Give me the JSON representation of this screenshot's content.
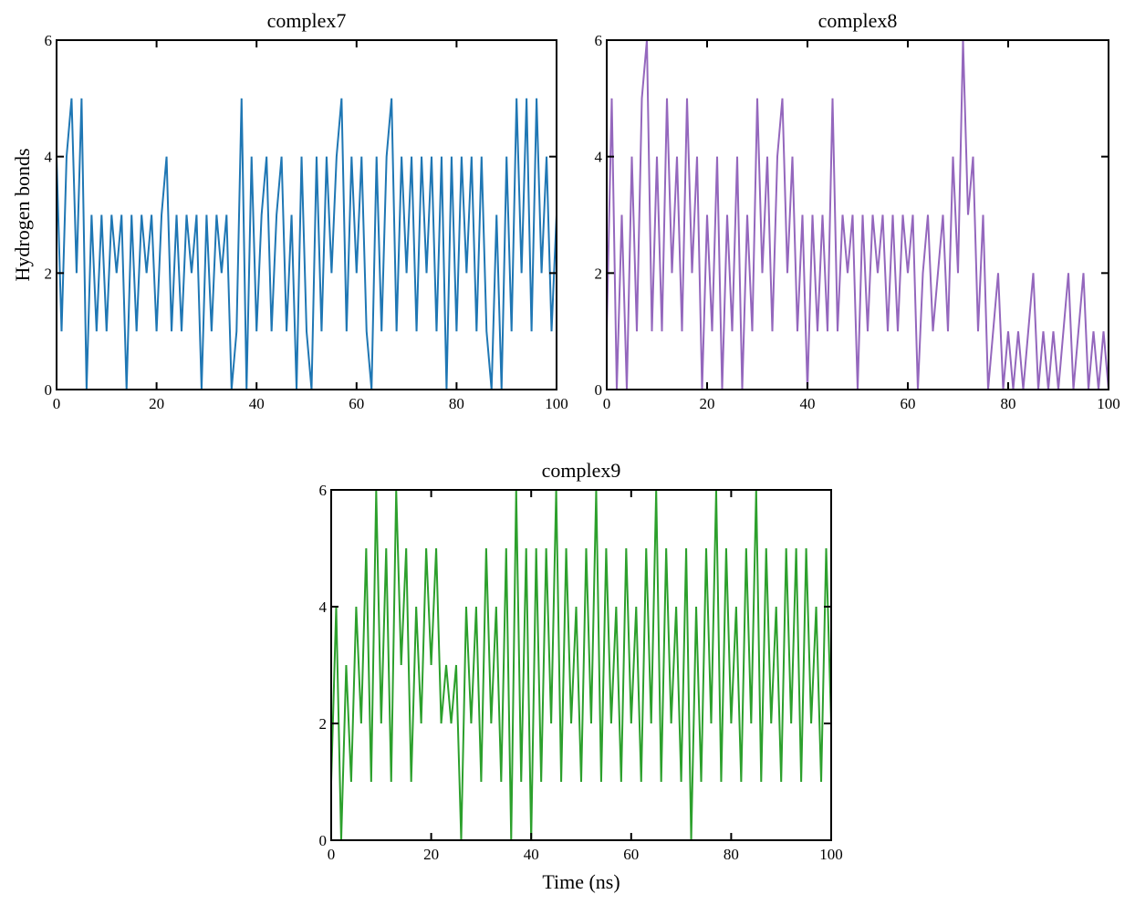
{
  "chart_data": [
    {
      "type": "line",
      "title": "complex7",
      "ylabel": "Hydrogen bonds",
      "color": "#1f77b4",
      "x": [
        0,
        1,
        2,
        3,
        4,
        5,
        6,
        7,
        8,
        9,
        10,
        11,
        12,
        13,
        14,
        15,
        16,
        17,
        18,
        19,
        20,
        21,
        22,
        23,
        24,
        25,
        26,
        27,
        28,
        29,
        30,
        31,
        32,
        33,
        34,
        35,
        36,
        37,
        38,
        39,
        40,
        41,
        42,
        43,
        44,
        45,
        46,
        47,
        48,
        49,
        50,
        51,
        52,
        53,
        54,
        55,
        56,
        57,
        58,
        59,
        60,
        61,
        62,
        63,
        64,
        65,
        66,
        67,
        68,
        69,
        70,
        71,
        72,
        73,
        74,
        75,
        76,
        77,
        78,
        79,
        80,
        81,
        82,
        83,
        84,
        85,
        86,
        87,
        88,
        89,
        90,
        91,
        92,
        93,
        94,
        95,
        96,
        97,
        98,
        99,
        100
      ],
      "values": [
        4,
        1,
        4,
        5,
        2,
        5,
        0,
        3,
        1,
        3,
        1,
        3,
        2,
        3,
        0,
        3,
        1,
        3,
        2,
        3,
        1,
        3,
        4,
        1,
        3,
        1,
        3,
        2,
        3,
        0,
        3,
        1,
        3,
        2,
        3,
        0,
        1,
        5,
        0,
        4,
        1,
        3,
        4,
        1,
        3,
        4,
        1,
        3,
        0,
        4,
        1,
        0,
        4,
        1,
        4,
        2,
        4,
        5,
        1,
        4,
        2,
        4,
        1,
        0,
        4,
        1,
        4,
        5,
        1,
        4,
        2,
        4,
        1,
        4,
        2,
        4,
        1,
        4,
        0,
        4,
        1,
        4,
        2,
        4,
        1,
        4,
        1,
        0,
        3,
        0,
        4,
        1,
        5,
        2,
        5,
        1,
        5,
        2,
        4,
        1,
        3
      ],
      "xlim": [
        0,
        100
      ],
      "ylim": [
        0,
        6
      ],
      "xticks": [
        0,
        20,
        40,
        60,
        80,
        100
      ],
      "yticks": [
        0,
        2,
        4,
        6
      ]
    },
    {
      "type": "line",
      "title": "complex8",
      "color": "#9467bd",
      "x": [
        0,
        1,
        2,
        3,
        4,
        5,
        6,
        7,
        8,
        9,
        10,
        11,
        12,
        13,
        14,
        15,
        16,
        17,
        18,
        19,
        20,
        21,
        22,
        23,
        24,
        25,
        26,
        27,
        28,
        29,
        30,
        31,
        32,
        33,
        34,
        35,
        36,
        37,
        38,
        39,
        40,
        41,
        42,
        43,
        44,
        45,
        46,
        47,
        48,
        49,
        50,
        51,
        52,
        53,
        54,
        55,
        56,
        57,
        58,
        59,
        60,
        61,
        62,
        63,
        64,
        65,
        66,
        67,
        68,
        69,
        70,
        71,
        72,
        73,
        74,
        75,
        76,
        77,
        78,
        79,
        80,
        81,
        82,
        83,
        84,
        85,
        86,
        87,
        88,
        89,
        90,
        91,
        92,
        93,
        94,
        95,
        96,
        97,
        98,
        99,
        100
      ],
      "values": [
        1,
        5,
        0,
        3,
        0,
        4,
        1,
        5,
        6,
        1,
        4,
        1,
        5,
        2,
        4,
        1,
        5,
        2,
        4,
        0,
        3,
        1,
        4,
        0,
        3,
        1,
        4,
        0,
        3,
        1,
        5,
        2,
        4,
        1,
        4,
        5,
        2,
        4,
        1,
        3,
        0,
        3,
        1,
        3,
        1,
        5,
        1,
        3,
        2,
        3,
        0,
        3,
        1,
        3,
        2,
        3,
        1,
        3,
        1,
        3,
        2,
        3,
        0,
        2,
        3,
        1,
        2,
        3,
        1,
        4,
        2,
        6,
        3,
        4,
        1,
        3,
        0,
        1,
        2,
        0,
        1,
        0,
        1,
        0,
        1,
        2,
        0,
        1,
        0,
        1,
        0,
        1,
        2,
        0,
        1,
        2,
        0,
        1,
        0,
        1,
        0
      ],
      "xlim": [
        0,
        100
      ],
      "ylim": [
        0,
        6
      ],
      "xticks": [
        0,
        20,
        40,
        60,
        80,
        100
      ],
      "yticks": [
        0,
        2,
        4,
        6
      ]
    },
    {
      "type": "line",
      "title": "complex9",
      "xlabel": "Time (ns)",
      "color": "#2ca02c",
      "x": [
        0,
        1,
        2,
        3,
        4,
        5,
        6,
        7,
        8,
        9,
        10,
        11,
        12,
        13,
        14,
        15,
        16,
        17,
        18,
        19,
        20,
        21,
        22,
        23,
        24,
        25,
        26,
        27,
        28,
        29,
        30,
        31,
        32,
        33,
        34,
        35,
        36,
        37,
        38,
        39,
        40,
        41,
        42,
        43,
        44,
        45,
        46,
        47,
        48,
        49,
        50,
        51,
        52,
        53,
        54,
        55,
        56,
        57,
        58,
        59,
        60,
        61,
        62,
        63,
        64,
        65,
        66,
        67,
        68,
        69,
        70,
        71,
        72,
        73,
        74,
        75,
        76,
        77,
        78,
        79,
        80,
        81,
        82,
        83,
        84,
        85,
        86,
        87,
        88,
        89,
        90,
        91,
        92,
        93,
        94,
        95,
        96,
        97,
        98,
        99,
        100
      ],
      "values": [
        1,
        4,
        0,
        3,
        1,
        4,
        2,
        5,
        1,
        6,
        2,
        5,
        1,
        6,
        3,
        5,
        1,
        4,
        2,
        5,
        3,
        5,
        2,
        3,
        2,
        3,
        0,
        4,
        2,
        4,
        1,
        5,
        2,
        4,
        1,
        5,
        0,
        6,
        1,
        5,
        0,
        5,
        1,
        5,
        2,
        6,
        1,
        5,
        2,
        4,
        1,
        5,
        2,
        6,
        1,
        5,
        2,
        4,
        1,
        5,
        2,
        4,
        1,
        5,
        2,
        6,
        1,
        5,
        2,
        4,
        1,
        5,
        0,
        4,
        1,
        5,
        2,
        6,
        1,
        5,
        2,
        4,
        1,
        5,
        2,
        6,
        1,
        5,
        2,
        4,
        1,
        5,
        2,
        5,
        1,
        5,
        2,
        4,
        1,
        5,
        2
      ],
      "xlim": [
        0,
        100
      ],
      "ylim": [
        0,
        6
      ],
      "xticks": [
        0,
        20,
        40,
        60,
        80,
        100
      ],
      "yticks": [
        0,
        2,
        4,
        6
      ]
    }
  ]
}
